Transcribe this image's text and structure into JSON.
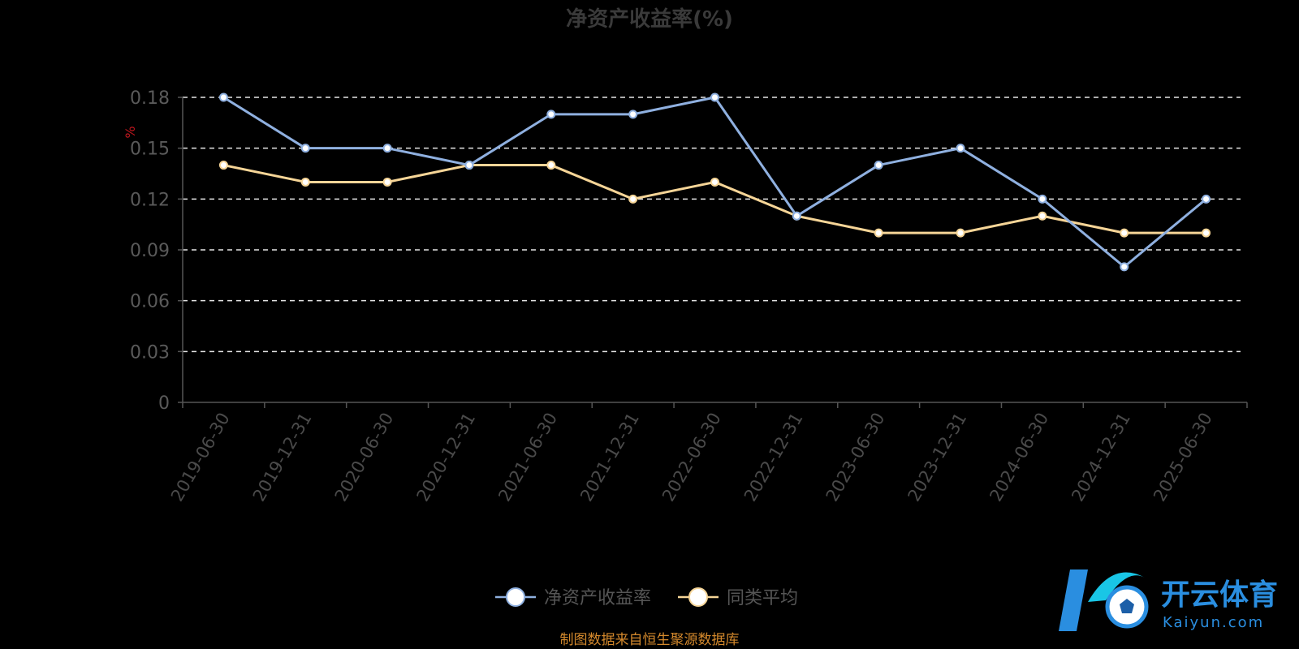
{
  "chart_data": {
    "type": "line",
    "title": "净资产收益率(%)",
    "ylabel": "%",
    "ylim": [
      0,
      0.18
    ],
    "yticks": [
      "0",
      "0.03",
      "0.06",
      "0.09",
      "0.12",
      "0.15",
      "0.18"
    ],
    "categories": [
      "2019-06-30",
      "2019-12-31",
      "2020-06-30",
      "2020-12-31",
      "2021-06-30",
      "2021-12-31",
      "2022-06-30",
      "2022-12-31",
      "2023-06-30",
      "2023-12-31",
      "2024-06-30",
      "2024-12-31",
      "2025-06-30"
    ],
    "series": [
      {
        "name": "净资产收益率",
        "color": "#8fb0e0",
        "values": [
          0.18,
          0.15,
          0.15,
          0.14,
          0.17,
          0.17,
          0.18,
          0.11,
          0.14,
          0.15,
          0.12,
          0.08,
          0.12
        ]
      },
      {
        "name": "同类平均",
        "color": "#f6d597",
        "values": [
          0.14,
          0.13,
          0.13,
          0.14,
          0.14,
          0.12,
          0.13,
          0.11,
          0.1,
          0.1,
          0.11,
          0.1,
          0.1
        ]
      }
    ],
    "grid": true,
    "legend": "bottom-center"
  },
  "source_note": "制图数据来自恒生聚源数据库",
  "watermark": {
    "brand": "开云体育",
    "url": "Kaiyun.com",
    "colors": {
      "primary": "#2a8ee0",
      "secondary": "#19c6e6"
    }
  }
}
